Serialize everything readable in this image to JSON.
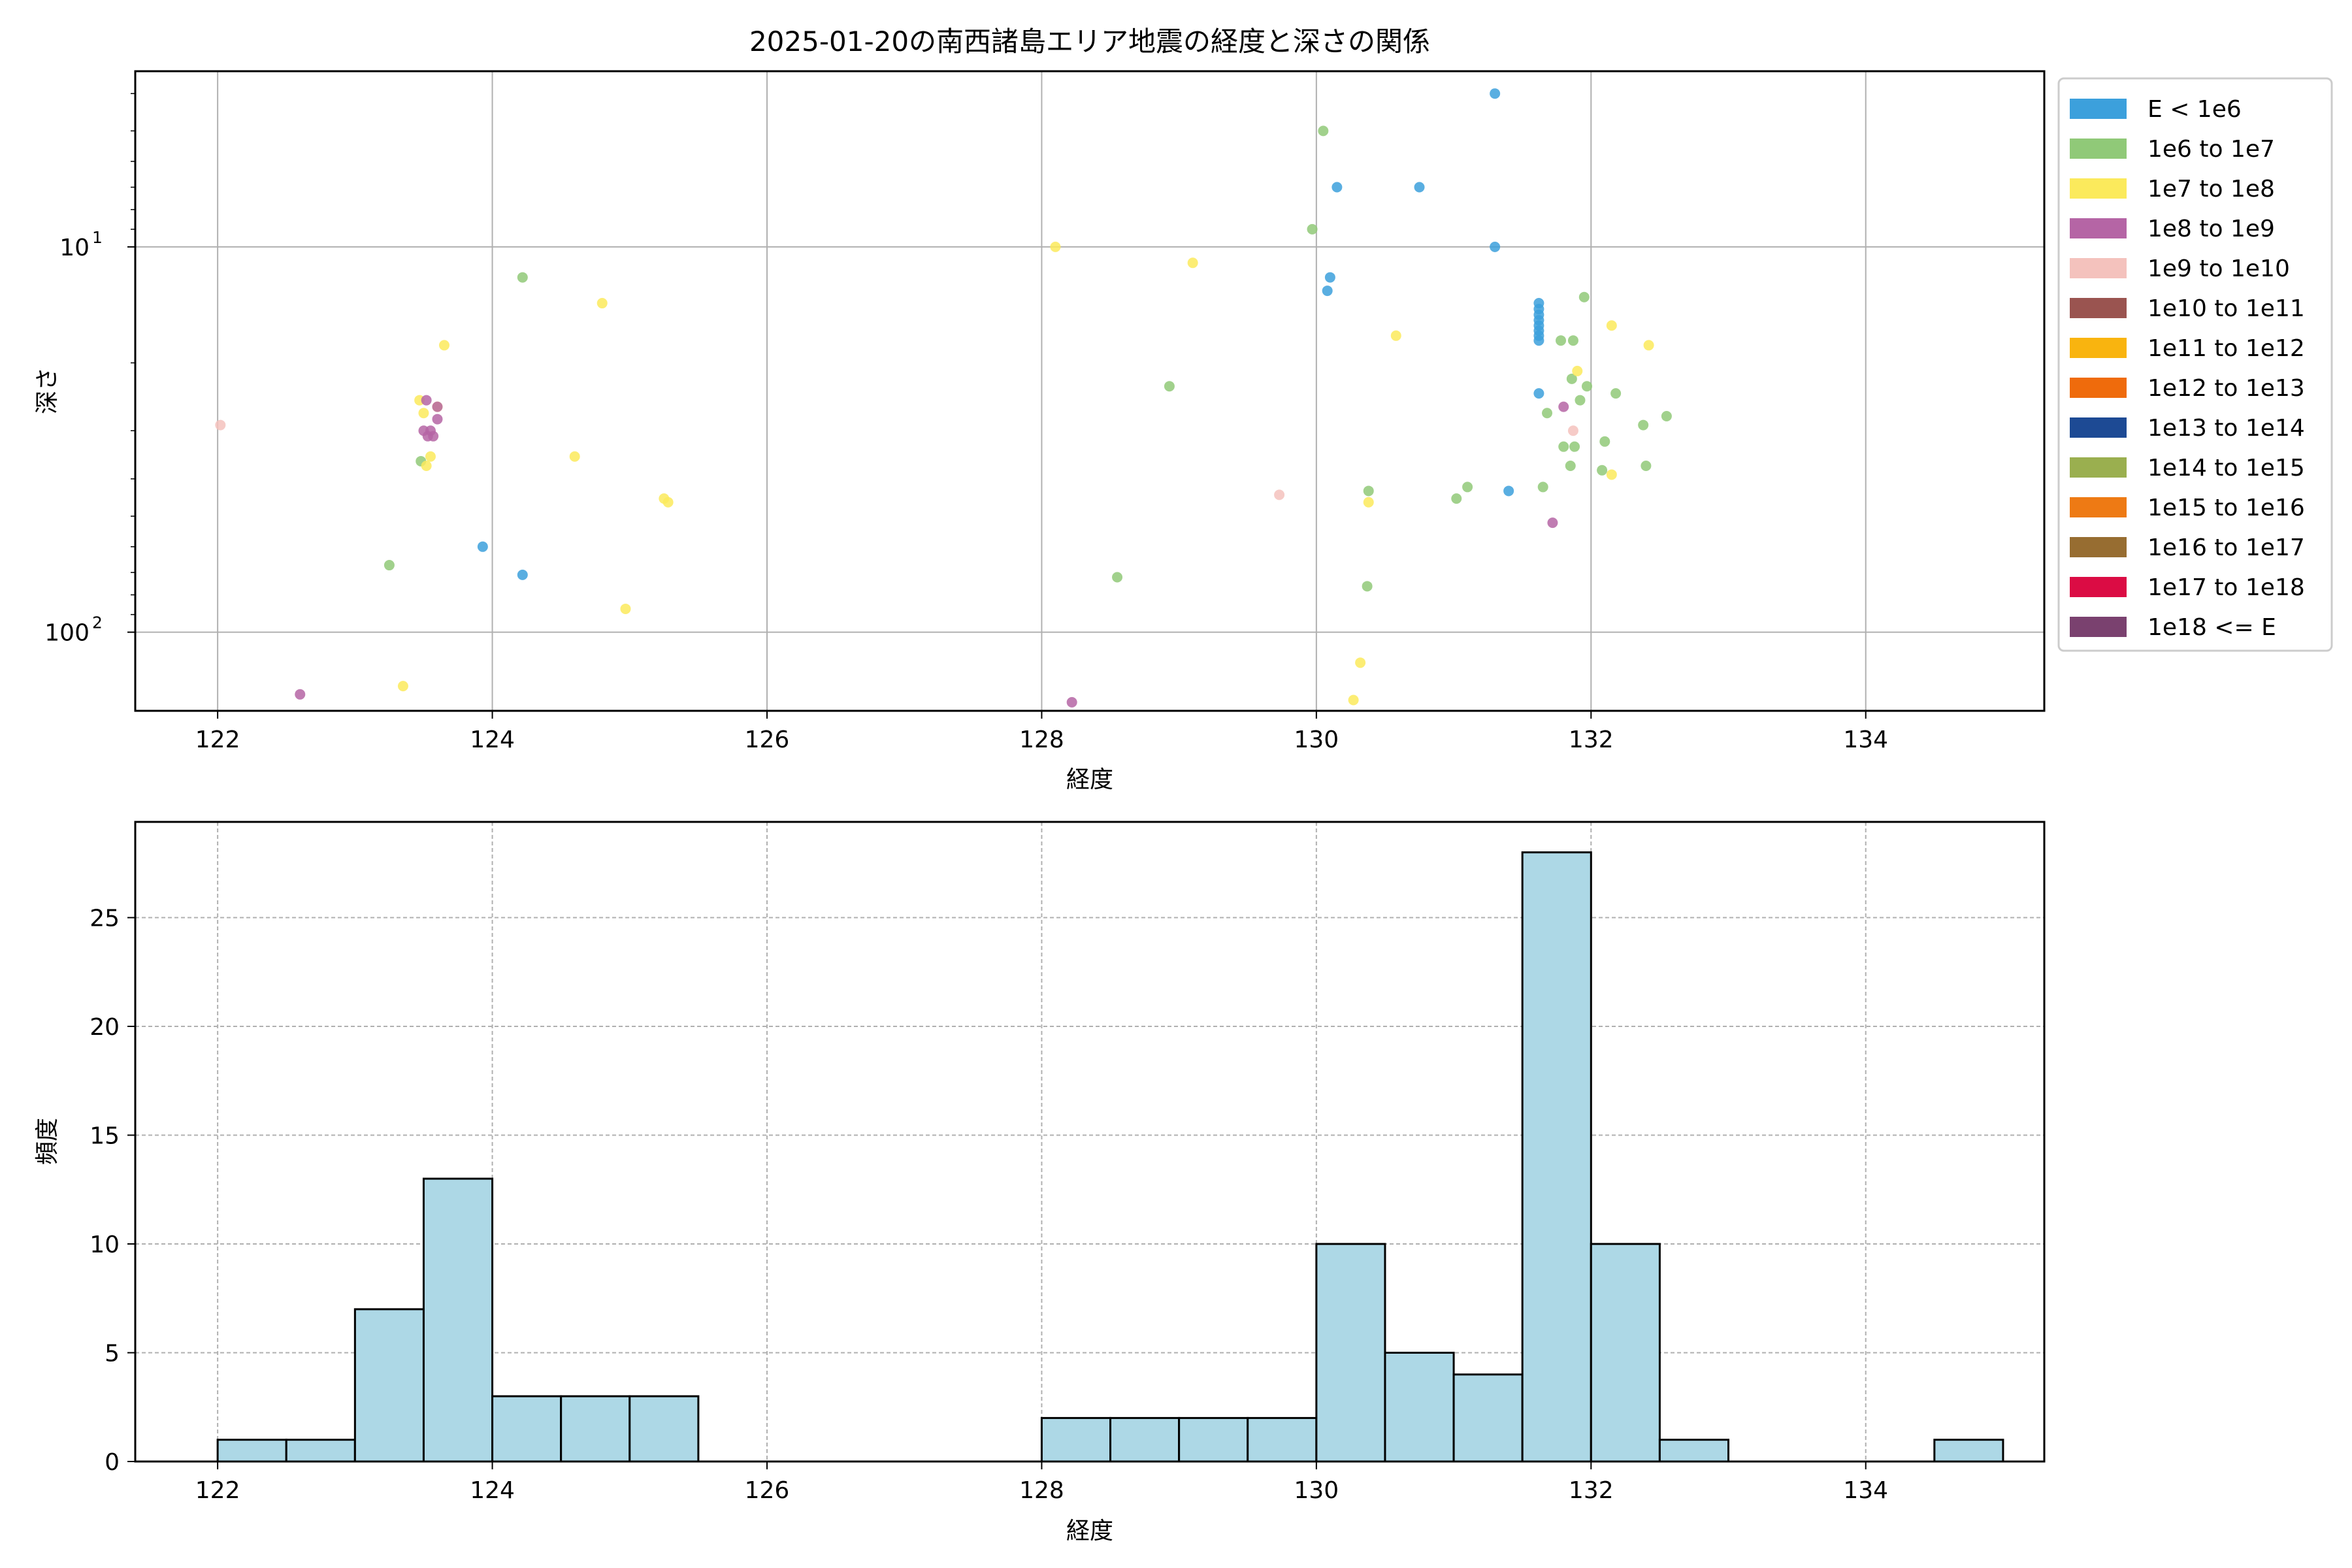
{
  "chart_data": [
    {
      "type": "scatter",
      "title": "2025-01-20の南西諸島エリア地震の経度と深さの関係",
      "xlabel": "経度",
      "ylabel": "深さ",
      "xlim": [
        121.4,
        135.3
      ],
      "ylim": [
        160,
        3.5
      ],
      "y_scale": "log",
      "y_inverted": true,
      "x_ticks": [
        122,
        124,
        126,
        128,
        130,
        132,
        134
      ],
      "x_tick_labels": [
        "122",
        "124",
        "126",
        "128",
        "130",
        "132",
        "134"
      ],
      "y_major_ticks": [
        10,
        100
      ],
      "y_tick_labels": [
        "10",
        "100"
      ],
      "grid": true,
      "legend_position": "outside-right",
      "legend": [
        {
          "label": "E < 1e6",
          "color": "#3ca0dc"
        },
        {
          "label": "1e6 to 1e7",
          "color": "#90c978"
        },
        {
          "label": "1e7 to 1e8",
          "color": "#fbea5c"
        },
        {
          "label": "1e8 to 1e9",
          "color": "#b565a5"
        },
        {
          "label": "1e9 to 1e10",
          "color": "#f4c2bd"
        },
        {
          "label": "1e10 to 1e11",
          "color": "#9a5450"
        },
        {
          "label": "1e11 to 1e12",
          "color": "#f9b40f"
        },
        {
          "label": "1e12 to 1e13",
          "color": "#ef6b0c"
        },
        {
          "label": "1e13 to 1e14",
          "color": "#1d4a94"
        },
        {
          "label": "1e14 to 1e15",
          "color": "#9aaf4f"
        },
        {
          "label": "1e15 to 1e16",
          "color": "#ee7a14"
        },
        {
          "label": "1e16 to 1e17",
          "color": "#976d31"
        },
        {
          "label": "1e17 to 1e18",
          "color": "#db0c44"
        },
        {
          "label": "1e18 <= E",
          "color": "#7a416f"
        }
      ],
      "series": [
        {
          "class": 0,
          "x": [
            131.3,
            130.15,
            130.75,
            131.3,
            130.1,
            130.08,
            131.62,
            131.62,
            131.62,
            131.62,
            131.62,
            131.62,
            131.62,
            131.62,
            131.62,
            131.4,
            123.93,
            124.22
          ],
          "y": [
            4.0,
            7.0,
            7.0,
            10.0,
            12.0,
            13.0,
            14.0,
            14.5,
            15.0,
            15.5,
            16.0,
            16.5,
            17.0,
            17.5,
            24.0,
            43.0,
            60.0,
            71.0
          ]
        },
        {
          "class": 1,
          "x": [
            130.05,
            129.97,
            124.22,
            131.95,
            131.78,
            131.87,
            131.86,
            131.97,
            131.92,
            132.18,
            131.68,
            132.55,
            132.38,
            132.1,
            131.8,
            131.88,
            131.85,
            132.08,
            132.4,
            131.65,
            130.38,
            131.1,
            131.02,
            128.93,
            128.55,
            130.37,
            123.48,
            123.25
          ],
          "y": [
            5.0,
            9.0,
            12.0,
            13.5,
            17.5,
            17.5,
            22.0,
            23.0,
            25.0,
            24.0,
            27.0,
            27.5,
            29.0,
            32.0,
            33.0,
            33.0,
            37.0,
            38.0,
            37.0,
            42.0,
            43.0,
            42.0,
            45.0,
            23.0,
            72.0,
            76.0,
            36.0,
            67.0
          ]
        },
        {
          "class": 2,
          "x": [
            128.1,
            129.1,
            124.8,
            132.15,
            130.58,
            123.65,
            132.42,
            131.9,
            123.47,
            123.6,
            123.5,
            123.55,
            124.6,
            123.52,
            132.15,
            125.25,
            125.28,
            130.38,
            124.97,
            123.35,
            130.32,
            130.27
          ],
          "y": [
            10.0,
            11.0,
            14.0,
            16.0,
            17.0,
            18.0,
            18.0,
            21.0,
            25.0,
            26.0,
            27.0,
            35.0,
            35.0,
            37.0,
            39.0,
            45.0,
            46.0,
            46.0,
            87.0,
            138.0,
            120.0,
            150.0
          ]
        },
        {
          "class": 3,
          "x": [
            123.52,
            123.6,
            123.6,
            123.5,
            123.55,
            123.57,
            123.53,
            131.8,
            131.72,
            122.6,
            128.22
          ],
          "y": [
            25.0,
            26.0,
            28.0,
            30.0,
            30.0,
            31.0,
            31.0,
            26.0,
            52.0,
            145.0,
            152.0
          ]
        },
        {
          "class": 4,
          "x": [
            122.02,
            131.87,
            129.73
          ],
          "y": [
            29.0,
            30.0,
            44.0
          ]
        }
      ]
    },
    {
      "type": "bar",
      "title": "",
      "xlabel": "経度",
      "ylabel": "頻度",
      "xlim": [
        121.4,
        135.3
      ],
      "ylim": [
        0,
        29.4
      ],
      "x_ticks": [
        122,
        124,
        126,
        128,
        130,
        132,
        134
      ],
      "x_tick_labels": [
        "122",
        "124",
        "126",
        "128",
        "130",
        "132",
        "134"
      ],
      "y_ticks": [
        0,
        5,
        10,
        15,
        20,
        25
      ],
      "y_tick_labels": [
        "0",
        "5",
        "10",
        "15",
        "20",
        "25"
      ],
      "grid": true,
      "bar_color": "#add8e6",
      "edge_color": "#000000",
      "bin_edges": [
        122.0,
        122.5,
        123.0,
        123.5,
        124.0,
        124.5,
        125.0,
        125.5,
        126.0,
        126.5,
        127.0,
        127.5,
        128.0,
        128.5,
        129.0,
        129.5,
        130.0,
        130.5,
        131.0,
        131.5,
        132.0,
        132.5,
        133.0,
        133.5,
        134.0,
        134.5,
        135.0
      ],
      "values": [
        1,
        1,
        7,
        13,
        3,
        3,
        3,
        0,
        0,
        0,
        0,
        0,
        2,
        2,
        2,
        2,
        10,
        5,
        4,
        28,
        10,
        1,
        0,
        0,
        0,
        1
      ]
    }
  ]
}
